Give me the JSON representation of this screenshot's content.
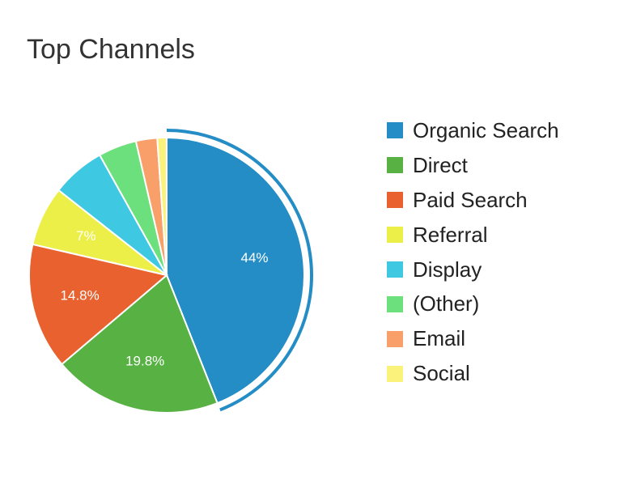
{
  "chart_data": {
    "type": "pie",
    "title": "Top Channels",
    "legend_position": "right",
    "highlighted": "Organic Search",
    "slices": [
      {
        "label": "Organic Search",
        "value": 44.0,
        "color": "#248dc6",
        "display": "44%"
      },
      {
        "label": "Direct",
        "value": 19.8,
        "color": "#57b243",
        "display": "19.8%"
      },
      {
        "label": "Paid Search",
        "value": 14.8,
        "color": "#e8612f",
        "display": "14.8%"
      },
      {
        "label": "Referral",
        "value": 7.0,
        "color": "#ecef47",
        "display": "7%"
      },
      {
        "label": "Display",
        "value": 6.3,
        "color": "#3fc8e2",
        "display": ""
      },
      {
        "label": "(Other)",
        "value": 4.5,
        "color": "#6ce07c",
        "display": ""
      },
      {
        "label": "Email",
        "value": 2.5,
        "color": "#f99f6a",
        "display": ""
      },
      {
        "label": "Social",
        "value": 1.1,
        "color": "#fbf27c",
        "display": ""
      }
    ]
  }
}
